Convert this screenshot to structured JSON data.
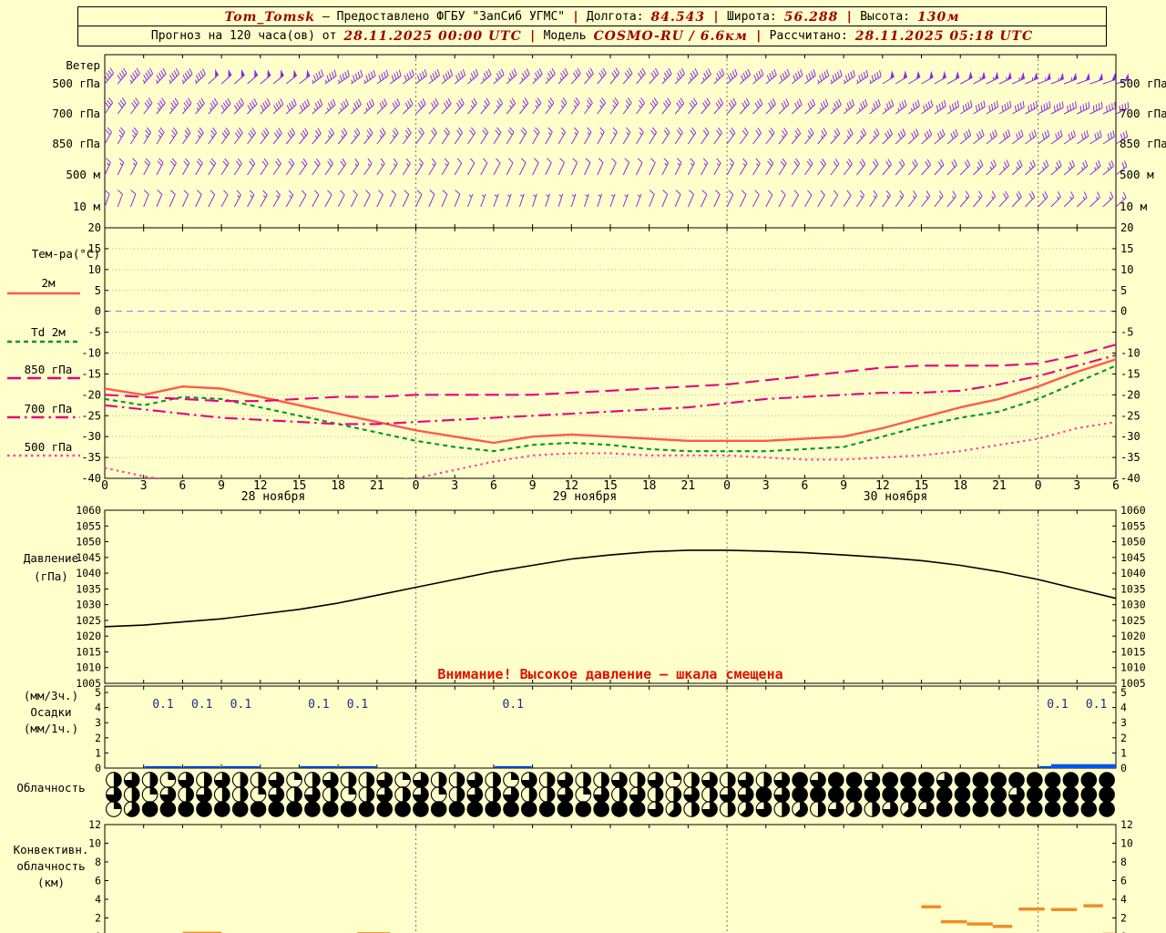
{
  "colors": {
    "background": "#ffffcc",
    "wind_barb": "#8a2be2",
    "temp_2m": "#ff5a47",
    "dewpoint_2m": "#009628",
    "temp_850": "#e8007a",
    "temp_700": "#e8007a",
    "temp_500": "#ff3fa0",
    "pressure_line": "#000000",
    "precip": "#0044cc",
    "precip_label": "#1a2f8f",
    "convective": "#ef8f25",
    "warning": "#e01000",
    "header_accent": "#a00000"
  },
  "header": {
    "station": "Tom_Tomsk",
    "provider": "— Предоставлено ФГБУ \"ЗапСиб УГМС\"",
    "sep": "|",
    "lon_label": "Долгота:",
    "lon": "84.543",
    "lat_label": "Широта:",
    "lat": "56.288",
    "alt_label": "Высота:",
    "alt": "130м",
    "forecast_label": "Прогноз на 120 часа(ов) от",
    "run_time": "28.11.2025 00:00 UTC",
    "model_label": "Модель",
    "model": "COSMO-RU / 6.6км",
    "calc_label": "Рассчитано:",
    "calc_time": "28.11.2025 05:18 UTC"
  },
  "labels": {
    "wind": "Ветер",
    "wind_levels": [
      "500 гПа",
      "700 гПа",
      "850 гПа",
      "500 м",
      "10 м"
    ],
    "temp_title": "Тем-ра(°C)",
    "temp_legend": [
      "2м",
      "Td 2м",
      "850 гПа",
      "700 гПа",
      "500 гПа"
    ],
    "pressure_1": "Давление",
    "pressure_2": "(гПа)",
    "precip_1": "(мм/3ч.)",
    "precip_2": "Осадки",
    "precip_3": "(мм/1ч.)",
    "cloud": "Облачность",
    "conv_1": "Конвективн.",
    "conv_2": "облачность",
    "conv_3": "(км)",
    "warning": "Внимание! Высокое давление — шкала смещена",
    "dates": [
      "28 ноября",
      "29 ноября",
      "30 ноября"
    ]
  },
  "time": {
    "t_end": 78,
    "step_hours": 3,
    "day_boundaries": [
      24,
      48,
      72
    ],
    "day_centers": [
      13,
      37,
      61
    ]
  },
  "chart_data": [
    {
      "id": "wind",
      "type": "barbs",
      "title": "Ветер",
      "speed_unit": "kt",
      "dir_unit": "deg_from",
      "hours": [
        0,
        3,
        6,
        9,
        12,
        15,
        18,
        21,
        24,
        27,
        30,
        33,
        36,
        39,
        42,
        45,
        48,
        51,
        54,
        57,
        60,
        63,
        66,
        69,
        72,
        75,
        78
      ],
      "levels": [
        {
          "label": "500 гПа",
          "dirs": [
            40,
            42,
            45,
            48,
            50,
            52,
            55,
            55,
            52,
            50,
            48,
            45,
            42,
            40,
            42,
            45,
            48,
            50,
            52,
            55,
            58,
            60,
            62,
            65,
            68,
            70,
            72
          ],
          "speeds": [
            40,
            45,
            45,
            50,
            50,
            48,
            45,
            42,
            40,
            38,
            35,
            35,
            32,
            30,
            32,
            35,
            38,
            40,
            42,
            45,
            48,
            50,
            52,
            55,
            55,
            52,
            50
          ]
        },
        {
          "label": "700 гПа",
          "dirs": [
            35,
            38,
            40,
            42,
            45,
            48,
            48,
            46,
            45,
            42,
            40,
            38,
            36,
            36,
            38,
            40,
            42,
            45,
            48,
            50,
            52,
            55,
            58,
            60,
            62,
            64,
            66
          ],
          "speeds": [
            30,
            32,
            35,
            38,
            40,
            38,
            35,
            32,
            30,
            28,
            26,
            25,
            25,
            26,
            28,
            30,
            30,
            32,
            32,
            35,
            35,
            38,
            38,
            40,
            42,
            42,
            40
          ]
        },
        {
          "label": "850 гПа",
          "dirs": [
            30,
            32,
            35,
            36,
            38,
            40,
            40,
            38,
            36,
            34,
            32,
            30,
            30,
            30,
            32,
            34,
            36,
            38,
            40,
            42,
            45,
            48,
            50,
            52,
            54,
            56,
            58
          ],
          "speeds": [
            22,
            25,
            25,
            28,
            30,
            28,
            26,
            25,
            22,
            20,
            18,
            18,
            16,
            16,
            18,
            20,
            22,
            22,
            25,
            25,
            28,
            28,
            30,
            30,
            32,
            32,
            30
          ]
        },
        {
          "label": "500 м",
          "dirs": [
            25,
            28,
            30,
            32,
            34,
            35,
            35,
            34,
            32,
            30,
            28,
            26,
            25,
            25,
            26,
            28,
            30,
            32,
            35,
            38,
            40,
            42,
            44,
            46,
            48,
            50,
            52
          ],
          "speeds": [
            15,
            18,
            18,
            20,
            22,
            20,
            18,
            16,
            15,
            12,
            12,
            10,
            10,
            12,
            12,
            15,
            15,
            18,
            18,
            20,
            20,
            22,
            22,
            25,
            25,
            25,
            22
          ]
        },
        {
          "label": "10 м",
          "dirs": [
            20,
            22,
            25,
            28,
            30,
            30,
            28,
            26,
            25,
            22,
            20,
            18,
            18,
            20,
            22,
            24,
            26,
            28,
            30,
            32,
            35,
            38,
            40,
            42,
            44,
            46,
            48
          ],
          "speeds": [
            8,
            10,
            12,
            12,
            15,
            12,
            12,
            10,
            8,
            8,
            6,
            6,
            5,
            6,
            8,
            8,
            10,
            10,
            12,
            12,
            15,
            15,
            15,
            18,
            18,
            16,
            15
          ]
        }
      ]
    },
    {
      "id": "temperature",
      "type": "line",
      "ylabel": "°C",
      "ylim": [
        -40,
        20
      ],
      "ytick": 5,
      "hours": [
        0,
        3,
        6,
        9,
        12,
        15,
        18,
        21,
        24,
        27,
        30,
        33,
        36,
        39,
        42,
        45,
        48,
        51,
        54,
        57,
        60,
        63,
        66,
        69,
        72,
        75,
        78
      ],
      "series": [
        {
          "name": "2м",
          "color": "#ff5a47",
          "dash": "solid",
          "values": [
            -18.5,
            -20,
            -18,
            -18.5,
            -20.5,
            -22.5,
            -24.5,
            -26.5,
            -28.5,
            -30,
            -31.5,
            -30,
            -29.5,
            -30,
            -30.5,
            -31,
            -31,
            -31,
            -30.5,
            -30,
            -28,
            -25.5,
            -23,
            -21,
            -18,
            -14.5,
            -11.5
          ]
        },
        {
          "name": "Td 2м",
          "color": "#009628",
          "dash": "dash",
          "values": [
            -21,
            -22.5,
            -20.5,
            -21,
            -23,
            -25,
            -27,
            -29,
            -31,
            -32.5,
            -33.5,
            -32,
            -31.5,
            -32,
            -33,
            -33.5,
            -33.5,
            -33.5,
            -33,
            -32.5,
            -30,
            -27.5,
            -25.5,
            -24,
            -21,
            -17,
            -13
          ]
        },
        {
          "name": "850 гПа",
          "color": "#e8007a",
          "dash": "longdash",
          "values": [
            -20,
            -20.5,
            -21,
            -21.5,
            -21.5,
            -21,
            -20.5,
            -20.5,
            -20,
            -20,
            -20,
            -20,
            -19.5,
            -19,
            -18.5,
            -18,
            -17.5,
            -16.5,
            -15.5,
            -14.5,
            -13.5,
            -13,
            -13,
            -13,
            -12.5,
            -10.5,
            -8
          ]
        },
        {
          "name": "700 гПа",
          "color": "#e8007a",
          "dash": "dashdot",
          "values": [
            -22.5,
            -23.5,
            -24.5,
            -25.5,
            -26,
            -26.5,
            -27,
            -27,
            -26.5,
            -26,
            -25.5,
            -25,
            -24.5,
            -24,
            -23.5,
            -23,
            -22,
            -21,
            -20.5,
            -20,
            -19.5,
            -19.5,
            -19,
            -17.5,
            -15.5,
            -13,
            -10.5
          ]
        },
        {
          "name": "500 гПа",
          "color": "#ff3fa0",
          "dash": "finedot",
          "values": [
            -37.5,
            -39.5,
            -41,
            -42,
            -42,
            -41.5,
            -41,
            -40.5,
            -40,
            -38,
            -36,
            -34.5,
            -34,
            -34,
            -34.5,
            -34.5,
            -34.5,
            -35,
            -35.5,
            -35.5,
            -35,
            -34.5,
            -33.5,
            -32,
            -30.5,
            -28,
            -26.5
          ]
        }
      ]
    },
    {
      "id": "pressure",
      "type": "line",
      "ylabel": "гПа",
      "ylim": [
        1005,
        1060
      ],
      "ytick": 5,
      "note": "Внимание! Высокое давление — шкала смещена",
      "hours": [
        0,
        3,
        6,
        9,
        12,
        15,
        18,
        21,
        24,
        27,
        30,
        33,
        36,
        39,
        42,
        45,
        48,
        51,
        54,
        57,
        60,
        63,
        66,
        69,
        72,
        75,
        78
      ],
      "values": [
        1023,
        1023.5,
        1024.5,
        1025.5,
        1027,
        1028.5,
        1030.5,
        1033,
        1035.5,
        1038,
        1040.5,
        1042.5,
        1044.5,
        1045.8,
        1046.8,
        1047.3,
        1047.3,
        1047,
        1046.5,
        1045.8,
        1045,
        1044,
        1042.5,
        1040.5,
        1038,
        1035,
        1032
      ]
    },
    {
      "id": "precipitation",
      "type": "bar",
      "ylabel": "мм",
      "ylim": [
        0,
        5
      ],
      "bars_3h": [
        {
          "t": 6,
          "v": 0.1
        },
        {
          "t": 9,
          "v": 0.1
        },
        {
          "t": 12,
          "v": 0.1
        },
        {
          "t": 18,
          "v": 0.1
        },
        {
          "t": 21,
          "v": 0.1
        },
        {
          "t": 33,
          "v": 0.1
        },
        {
          "t": 75,
          "v": 0.1
        },
        {
          "t": 78,
          "v": 0.1
        }
      ],
      "bar_1h": {
        "t0": 73,
        "t1": 78,
        "v": 0.2
      }
    },
    {
      "id": "cloudiness",
      "type": "heatmap",
      "unit": "octas_0_8",
      "rows": [
        [
          4,
          6,
          4,
          2,
          6,
          4,
          6,
          4,
          4,
          6,
          2,
          4,
          6,
          4,
          4,
          6,
          2,
          6,
          4,
          4,
          6,
          4,
          2,
          6,
          4,
          6,
          4,
          4,
          6,
          4,
          6,
          2,
          4,
          6,
          4,
          6,
          4,
          6,
          8,
          6,
          8,
          8,
          6,
          8,
          8,
          8,
          6,
          8,
          8,
          8,
          8,
          8,
          8,
          8,
          8,
          8
        ],
        [
          6,
          4,
          2,
          6,
          4,
          6,
          4,
          4,
          2,
          6,
          4,
          6,
          4,
          2,
          4,
          6,
          4,
          6,
          2,
          4,
          6,
          4,
          6,
          4,
          4,
          6,
          2,
          6,
          4,
          6,
          4,
          4,
          6,
          4,
          6,
          6,
          8,
          6,
          8,
          8,
          8,
          8,
          8,
          8,
          8,
          8,
          8,
          8,
          8,
          8,
          6,
          8,
          8,
          8,
          8,
          8
        ],
        [
          2,
          5,
          8,
          8,
          8,
          8,
          8,
          8,
          8,
          8,
          8,
          8,
          8,
          8,
          8,
          8,
          8,
          8,
          8,
          8,
          8,
          8,
          8,
          8,
          8,
          8,
          8,
          8,
          8,
          8,
          6,
          5,
          4,
          6,
          4,
          5,
          6,
          4,
          5,
          4,
          6,
          5,
          4,
          6,
          5,
          6,
          8,
          8,
          8,
          8,
          8,
          8,
          8,
          8,
          8,
          8
        ]
      ]
    },
    {
      "id": "convective_cloud",
      "type": "scatter",
      "ylabel": "км",
      "ylim": [
        0,
        12
      ],
      "segments": [
        {
          "t0": 6,
          "t1": 9,
          "km": 0.35
        },
        {
          "t0": 19.5,
          "t1": 22,
          "km": 0.3
        },
        {
          "t0": 32,
          "t1": 34,
          "km": 0.18
        },
        {
          "t0": 54,
          "t1": 58,
          "km": 0.12
        },
        {
          "t0": 63,
          "t1": 64.5,
          "km": 3.2
        },
        {
          "t0": 64.5,
          "t1": 66.5,
          "km": 1.6
        },
        {
          "t0": 66.5,
          "t1": 68.5,
          "km": 1.35
        },
        {
          "t0": 68.5,
          "t1": 70,
          "km": 1.1
        },
        {
          "t0": 70.5,
          "t1": 72.5,
          "km": 2.95
        },
        {
          "t0": 73,
          "t1": 75,
          "km": 2.9
        },
        {
          "t0": 75.5,
          "t1": 77,
          "km": 3.3
        },
        {
          "t0": 77,
          "t1": 78,
          "km": 0.25
        }
      ]
    }
  ]
}
